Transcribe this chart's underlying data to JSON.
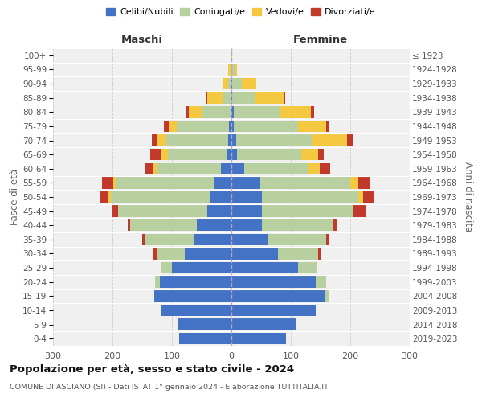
{
  "age_groups_bottom_to_top": [
    "0-4",
    "5-9",
    "10-14",
    "15-19",
    "20-24",
    "25-29",
    "30-34",
    "35-39",
    "40-44",
    "45-49",
    "50-54",
    "55-59",
    "60-64",
    "65-69",
    "70-74",
    "75-79",
    "80-84",
    "85-89",
    "90-94",
    "95-99",
    "100+"
  ],
  "birth_years_bottom_to_top": [
    "2019-2023",
    "2014-2018",
    "2009-2013",
    "2004-2008",
    "1999-2003",
    "1994-1998",
    "1989-1993",
    "1984-1988",
    "1979-1983",
    "1974-1978",
    "1969-1973",
    "1964-1968",
    "1959-1963",
    "1954-1958",
    "1949-1953",
    "1944-1948",
    "1939-1943",
    "1934-1938",
    "1929-1933",
    "1924-1928",
    "≤ 1923"
  ],
  "colors": {
    "celibe": "#4472c4",
    "coniugato": "#b8cfa0",
    "vedovo": "#f5c842",
    "divorziato": "#c0392b"
  },
  "maschi": {
    "celibe": [
      88,
      90,
      118,
      130,
      120,
      100,
      78,
      63,
      58,
      40,
      35,
      28,
      18,
      7,
      5,
      4,
      2,
      0,
      0,
      0,
      0
    ],
    "coniugato": [
      0,
      0,
      0,
      0,
      8,
      18,
      48,
      82,
      112,
      150,
      168,
      165,
      108,
      100,
      105,
      88,
      48,
      15,
      5,
      2,
      0
    ],
    "vedovo": [
      0,
      0,
      0,
      0,
      0,
      0,
      0,
      0,
      0,
      0,
      4,
      5,
      5,
      12,
      14,
      14,
      22,
      25,
      10,
      3,
      0
    ],
    "divorziato": [
      0,
      0,
      0,
      0,
      0,
      0,
      5,
      5,
      5,
      10,
      15,
      20,
      15,
      18,
      10,
      8,
      5,
      3,
      0,
      0,
      0
    ]
  },
  "femmine": {
    "nubile": [
      92,
      108,
      142,
      158,
      142,
      112,
      78,
      62,
      52,
      52,
      52,
      48,
      22,
      10,
      8,
      4,
      4,
      2,
      2,
      0,
      0
    ],
    "coniugata": [
      0,
      0,
      0,
      5,
      18,
      32,
      68,
      98,
      118,
      152,
      162,
      152,
      108,
      108,
      128,
      108,
      78,
      38,
      15,
      5,
      0
    ],
    "vedova": [
      0,
      0,
      0,
      0,
      0,
      0,
      0,
      0,
      0,
      0,
      8,
      14,
      18,
      28,
      58,
      48,
      52,
      48,
      25,
      5,
      2
    ],
    "divorziata": [
      0,
      0,
      0,
      0,
      0,
      0,
      5,
      5,
      8,
      22,
      18,
      18,
      18,
      10,
      10,
      5,
      5,
      2,
      0,
      0,
      0
    ]
  },
  "xlim": 300,
  "title": "Popolazione per età, sesso e stato civile - 2024",
  "subtitle": "COMUNE DI ASCIANO (SI) - Dati ISTAT 1° gennaio 2024 - Elaborazione TUTTITALIA.IT",
  "xlabel_left": "Maschi",
  "xlabel_right": "Femmine",
  "ylabel_left": "Fasce di età",
  "ylabel_right": "Anni di nascita",
  "legend_labels": [
    "Celibi/Nubili",
    "Coniugati/e",
    "Vedovi/e",
    "Divorziati/e"
  ],
  "bg_color": "#ffffff",
  "plot_bg": "#f0f0f0",
  "grid_color": "#cccccc"
}
